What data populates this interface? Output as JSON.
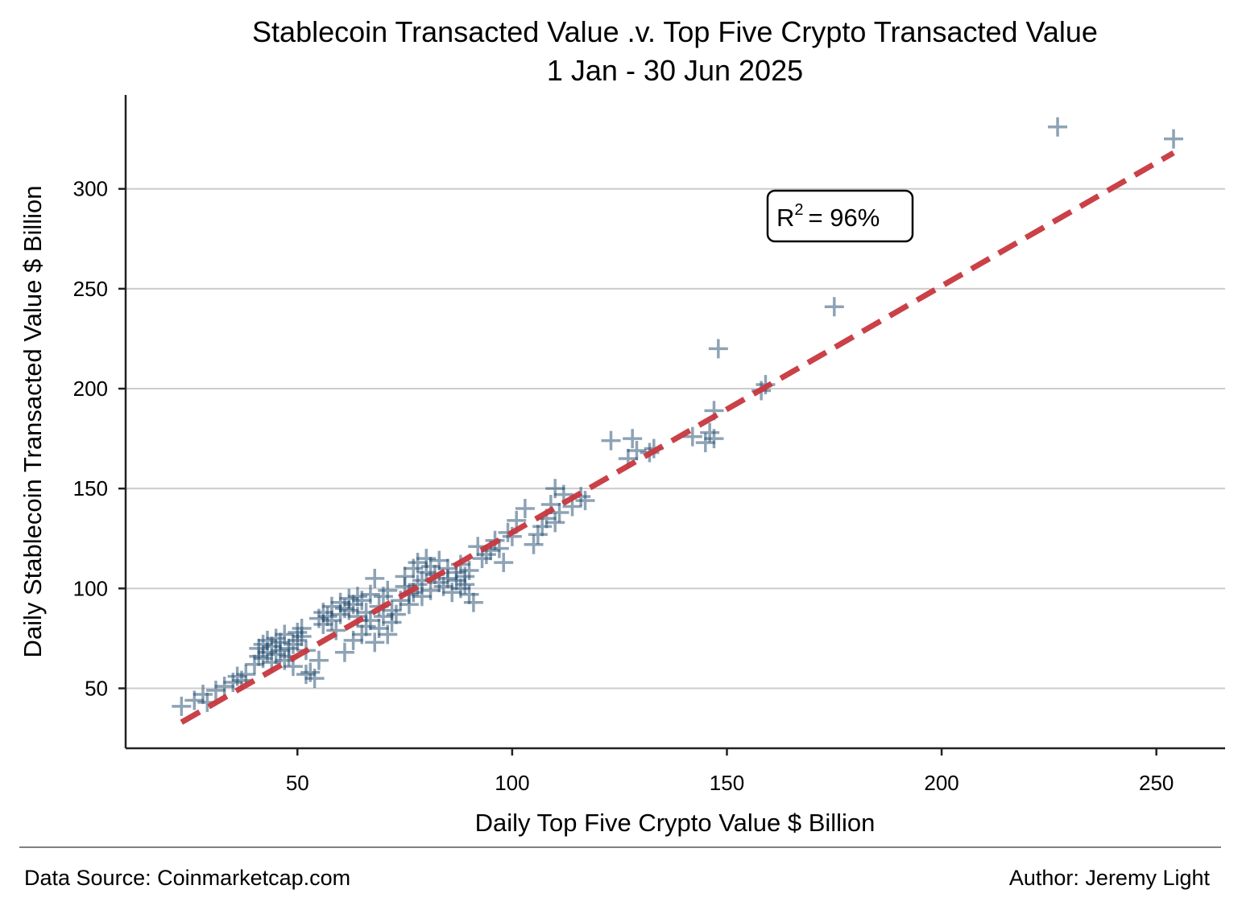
{
  "chart_data": {
    "type": "scatter",
    "title": "Stablecoin Transacted Value .v. Top Five Crypto Transacted Value",
    "subtitle": "1 Jan - 30 Jun 2025",
    "xlabel": "Daily Top Five Crypto Value $ Billion",
    "ylabel": "Daily Stablecoin Transacted Value $ Billion",
    "xlim": [
      10,
      266
    ],
    "ylim": [
      20,
      347
    ],
    "xticks": [
      50,
      100,
      150,
      200,
      250
    ],
    "yticks": [
      50,
      100,
      150,
      200,
      250,
      300
    ],
    "grid": "horizontal",
    "marker": "plus",
    "marker_color": "#1f4a6e",
    "trendline": {
      "style": "dashed",
      "color": "#c8373f",
      "x": [
        23,
        254
      ],
      "y": [
        33,
        318
      ]
    },
    "annotation": {
      "text": "= 96%",
      "r_label": "R",
      "superscript": "2"
    },
    "points": {
      "x": [
        23,
        26,
        28,
        29,
        31,
        33,
        35,
        36,
        37,
        38,
        40,
        41,
        41,
        42,
        42,
        43,
        43,
        44,
        44,
        45,
        45,
        46,
        46,
        47,
        47,
        48,
        48,
        49,
        49,
        50,
        50,
        51,
        51,
        52,
        52,
        53,
        54,
        55,
        55,
        56,
        56,
        57,
        58,
        58,
        59,
        60,
        60,
        61,
        61,
        62,
        62,
        63,
        63,
        64,
        64,
        65,
        65,
        66,
        66,
        67,
        67,
        68,
        68,
        69,
        69,
        70,
        70,
        71,
        71,
        72,
        72,
        73,
        74,
        75,
        75,
        76,
        76,
        77,
        77,
        78,
        78,
        79,
        79,
        80,
        80,
        81,
        81,
        82,
        83,
        83,
        84,
        85,
        85,
        86,
        87,
        87,
        88,
        88,
        89,
        89,
        90,
        90,
        91,
        92,
        93,
        94,
        95,
        96,
        97,
        98,
        99,
        100,
        101,
        103,
        105,
        106,
        107,
        108,
        109,
        110,
        110,
        111,
        112,
        114,
        116,
        117,
        123,
        127,
        128,
        129,
        132,
        133,
        142,
        145,
        146,
        147,
        148,
        147,
        158,
        159,
        175,
        227,
        254
      ],
      "y": [
        41,
        44,
        47,
        43,
        49,
        51,
        53,
        56,
        54,
        57,
        62,
        66,
        70,
        65,
        72,
        68,
        74,
        63,
        71,
        67,
        75,
        69,
        73,
        64,
        77,
        70,
        66,
        72,
        61,
        74,
        78,
        76,
        80,
        69,
        57,
        58,
        55,
        85,
        64,
        88,
        82,
        86,
        84,
        91,
        79,
        87,
        93,
        90,
        68,
        95,
        89,
        92,
        74,
        86,
        96,
        77,
        94,
        88,
        81,
        97,
        84,
        105,
        73,
        91,
        80,
        86,
        96,
        77,
        99,
        83,
        89,
        87,
        94,
        101,
        106,
        97,
        92,
        110,
        98,
        113,
        102,
        104,
        96,
        108,
        115,
        99,
        111,
        107,
        114,
        103,
        101,
        110,
        105,
        98,
        108,
        104,
        112,
        100,
        106,
        102,
        109,
        97,
        93,
        121,
        115,
        117,
        119,
        124,
        120,
        113,
        128,
        126,
        134,
        140,
        122,
        127,
        131,
        135,
        142,
        150,
        133,
        138,
        147,
        141,
        146,
        144,
        174,
        165,
        175,
        169,
        168,
        170,
        176,
        173,
        178,
        189,
        220,
        175,
        199,
        202,
        241,
        331,
        325
      ]
    }
  },
  "footer": {
    "source": "Data Source: Coinmarketcap.com",
    "author": "Author: Jeremy Light"
  }
}
